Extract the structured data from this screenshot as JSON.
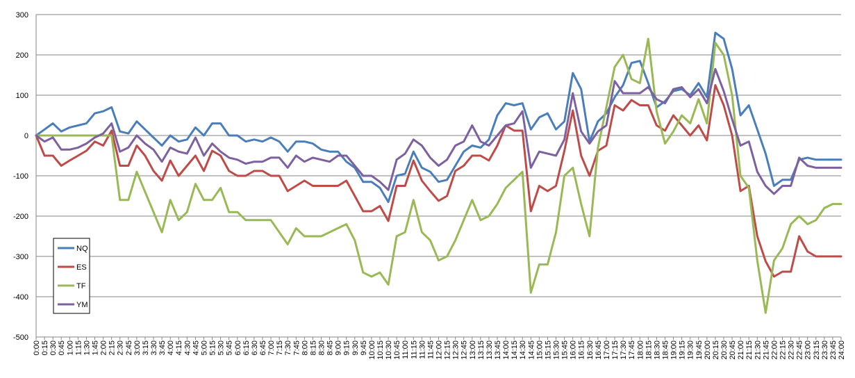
{
  "chart_data": {
    "type": "line",
    "title": "",
    "xlabel": "",
    "ylabel": "",
    "ylim": [
      -500,
      300
    ],
    "yticks": [
      300,
      200,
      100,
      0,
      -100,
      -200,
      -300,
      -400,
      -500
    ],
    "grid": "horizontal",
    "legend": {
      "position": "bottom-left",
      "entries": [
        "NQ",
        "ES",
        "TF",
        "YM"
      ]
    },
    "categories": [
      "0:00",
      "0:15",
      "0:30",
      "0:45",
      "1:00",
      "1:15",
      "1:30",
      "1:45",
      "2:00",
      "2:15",
      "2:30",
      "2:45",
      "3:00",
      "3:15",
      "3:30",
      "3:45",
      "4:00",
      "4:15",
      "4:30",
      "4:45",
      "5:00",
      "5:15",
      "5:30",
      "5:45",
      "6:00",
      "6:15",
      "6:30",
      "6:45",
      "7:00",
      "7:15",
      "7:30",
      "7:45",
      "8:00",
      "8:15",
      "8:30",
      "8:45",
      "9:00",
      "9:15",
      "9:30",
      "9:45",
      "10:00",
      "10:15",
      "10:30",
      "10:45",
      "11:00",
      "11:15",
      "11:30",
      "11:45",
      "12:00",
      "12:15",
      "12:30",
      "12:45",
      "13:00",
      "13:15",
      "13:30",
      "13:45",
      "14:00",
      "14:15",
      "14:30",
      "14:45",
      "15:00",
      "15:15",
      "15:30",
      "15:45",
      "16:00",
      "16:15",
      "16:30",
      "16:45",
      "17:00",
      "17:15",
      "17:30",
      "17:45",
      "18:00",
      "18:15",
      "18:30",
      "18:45",
      "19:00",
      "19:15",
      "19:30",
      "19:45",
      "20:00",
      "20:15",
      "20:30",
      "20:45",
      "21:00",
      "21:15",
      "21:30",
      "21:45",
      "22:00",
      "22:15",
      "22:30",
      "22:45",
      "23:00",
      "23:15",
      "23:30",
      "23:45",
      "24:00"
    ],
    "series": [
      {
        "name": "NQ",
        "color": "#4a7ebb",
        "values": [
          0,
          15,
          30,
          10,
          20,
          25,
          30,
          55,
          60,
          70,
          10,
          5,
          35,
          15,
          -5,
          -25,
          0,
          -15,
          -10,
          20,
          0,
          30,
          30,
          0,
          0,
          -15,
          -10,
          -15,
          -5,
          -15,
          -40,
          -15,
          -15,
          -20,
          -35,
          -40,
          -40,
          -65,
          -80,
          -115,
          -115,
          -130,
          -165,
          -100,
          -95,
          -40,
          -80,
          -90,
          -115,
          -110,
          -75,
          -40,
          -25,
          -30,
          -10,
          50,
          80,
          75,
          80,
          15,
          45,
          55,
          15,
          35,
          155,
          115,
          -15,
          35,
          55,
          95,
          125,
          180,
          185,
          130,
          70,
          85,
          110,
          115,
          100,
          130,
          95,
          255,
          240,
          165,
          50,
          75,
          15,
          -45,
          -125,
          -110,
          -110,
          -60,
          -55,
          -60,
          -60,
          -60,
          -60
        ]
      },
      {
        "name": "ES",
        "color": "#be4b48",
        "values": [
          0,
          -50,
          -50,
          -75,
          -62,
          -50,
          -38,
          -15,
          -25,
          12,
          -75,
          -75,
          -25,
          -50,
          -88,
          -112,
          -62,
          -100,
          -75,
          -50,
          -88,
          -38,
          -50,
          -88,
          -100,
          -100,
          -88,
          -88,
          -100,
          -100,
          -138,
          -125,
          -112,
          -125,
          -125,
          -125,
          -125,
          -112,
          -150,
          -188,
          -188,
          -175,
          -212,
          -125,
          -125,
          -62,
          -112,
          -138,
          -162,
          -150,
          -88,
          -75,
          -50,
          -50,
          -62,
          -25,
          25,
          12,
          12,
          -188,
          -125,
          -138,
          -125,
          -38,
          62,
          -50,
          -100,
          -38,
          -25,
          75,
          62,
          88,
          75,
          75,
          25,
          12,
          50,
          25,
          0,
          25,
          -12,
          125,
          75,
          0,
          -138,
          -125,
          -250,
          -312,
          -350,
          -338,
          -338,
          -250,
          -288,
          -300,
          -300,
          -300,
          -300
        ]
      },
      {
        "name": "TF",
        "color": "#98b954",
        "values": [
          0,
          0,
          0,
          0,
          0,
          0,
          0,
          0,
          0,
          0,
          -160,
          -160,
          -90,
          -140,
          -190,
          -240,
          -160,
          -210,
          -190,
          -120,
          -160,
          -160,
          -130,
          -190,
          -190,
          -210,
          -210,
          -210,
          -210,
          -240,
          -270,
          -230,
          -250,
          -250,
          -250,
          -240,
          -230,
          -220,
          -260,
          -340,
          -350,
          -340,
          -370,
          -250,
          -240,
          -160,
          -240,
          -260,
          -310,
          -300,
          -260,
          -210,
          -160,
          -210,
          -200,
          -170,
          -130,
          -110,
          -90,
          -390,
          -320,
          -320,
          -240,
          -100,
          -80,
          -170,
          -250,
          -30,
          70,
          170,
          200,
          140,
          130,
          240,
          60,
          -20,
          10,
          50,
          30,
          90,
          30,
          230,
          200,
          100,
          -100,
          -130,
          -310,
          -440,
          -310,
          -280,
          -220,
          -200,
          -220,
          -210,
          -180,
          -170,
          -170
        ]
      },
      {
        "name": "YM",
        "color": "#7d60a0",
        "values": [
          0,
          -15,
          -5,
          -35,
          -35,
          -30,
          -20,
          -5,
          5,
          30,
          -40,
          -30,
          0,
          -20,
          -35,
          -65,
          -30,
          -40,
          -45,
          -5,
          -50,
          -20,
          -40,
          -55,
          -60,
          -70,
          -65,
          -65,
          -55,
          -55,
          -80,
          -50,
          -65,
          -55,
          -60,
          -65,
          -50,
          -50,
          -75,
          -100,
          -100,
          -115,
          -135,
          -60,
          -45,
          -10,
          -25,
          -55,
          -75,
          -60,
          -25,
          -15,
          25,
          -15,
          -25,
          0,
          25,
          30,
          60,
          -80,
          -40,
          -45,
          -50,
          -10,
          105,
          10,
          -20,
          10,
          25,
          135,
          105,
          105,
          105,
          120,
          90,
          80,
          115,
          120,
          95,
          115,
          80,
          165,
          110,
          40,
          -25,
          -15,
          -90,
          -125,
          -145,
          -125,
          -125,
          -55,
          -75,
          -80,
          -80,
          -80,
          -80
        ]
      }
    ]
  }
}
